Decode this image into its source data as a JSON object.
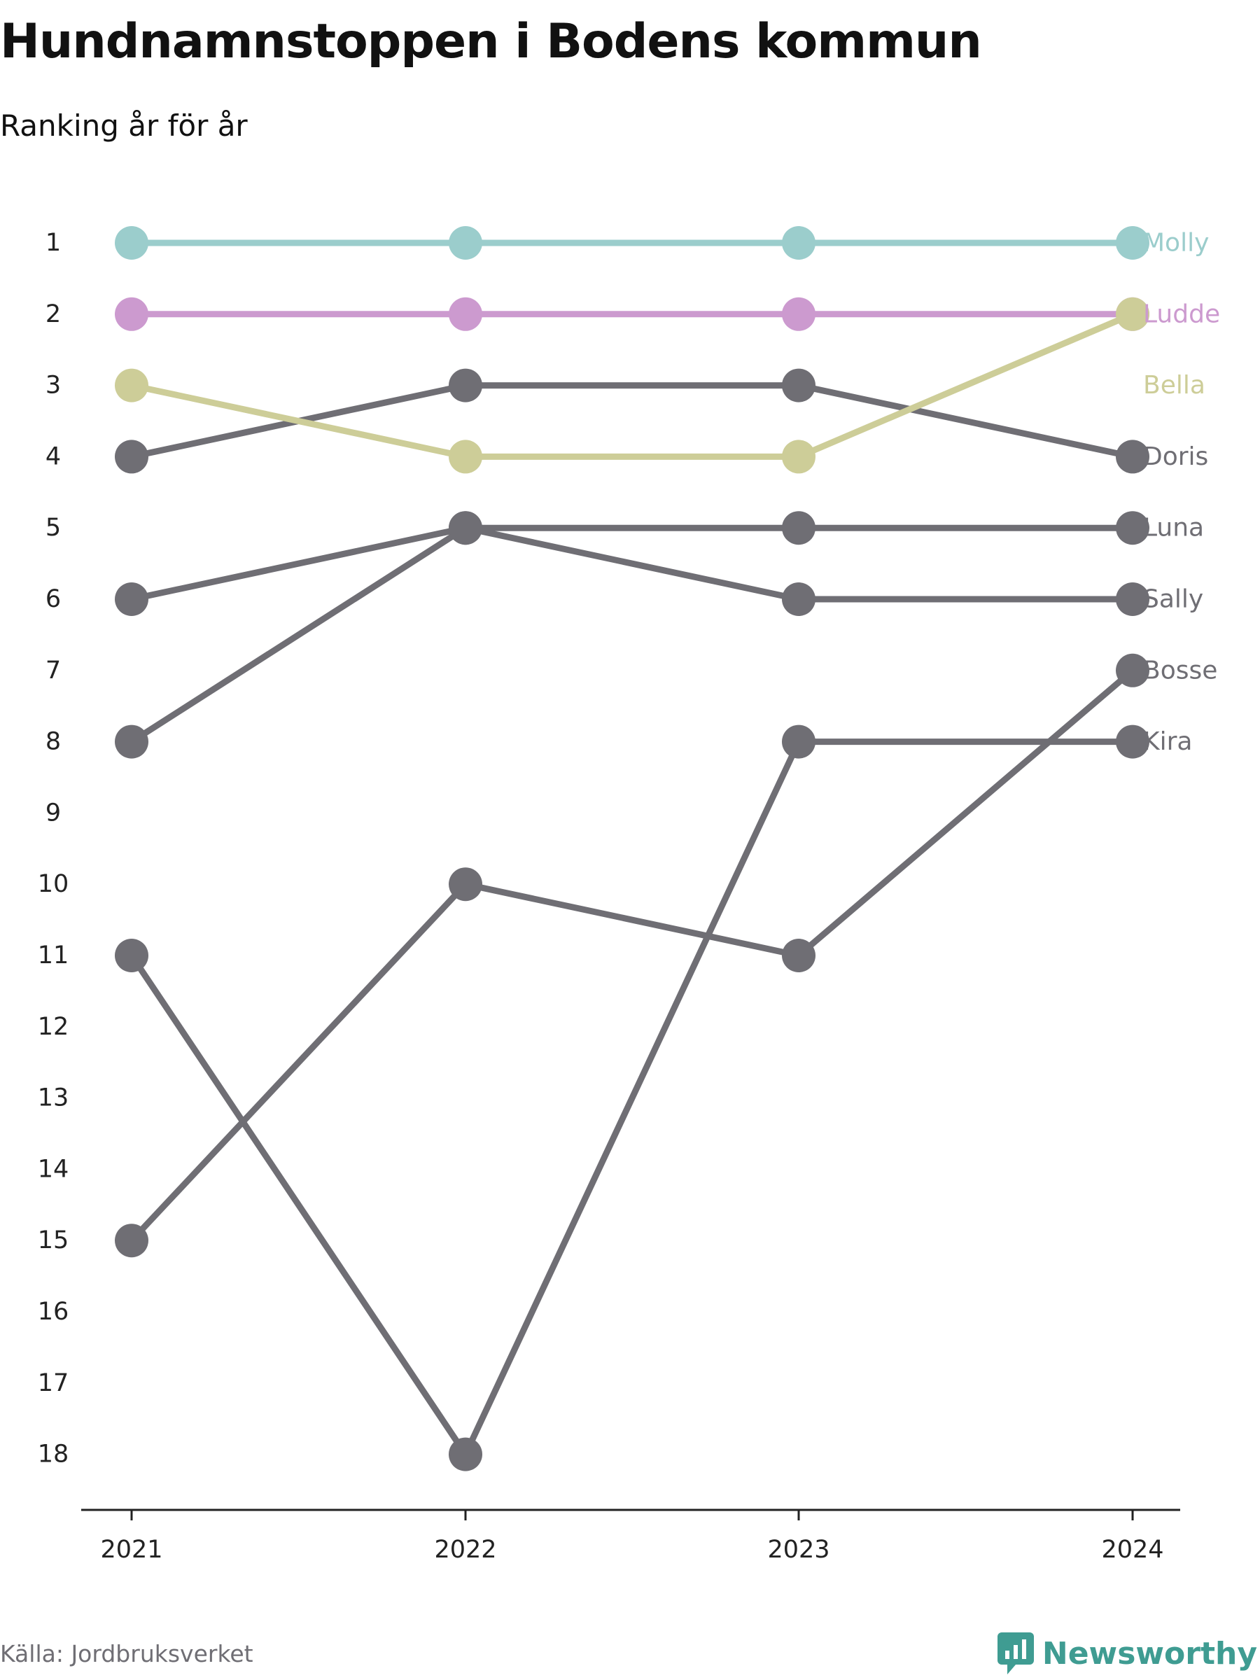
{
  "header": {
    "title": "Hundnamnstoppen i Bodens kommun",
    "subtitle": "Ranking år för år"
  },
  "footer": {
    "source": "Källa: Jordbruksverket",
    "brand": "Newsworthy"
  },
  "colors": {
    "highlight_molly": "#9bcdcc",
    "highlight_ludde": "#cc9acf",
    "highlight_bella": "#cdcd98",
    "other": "#6f6e74",
    "axis": "#222222",
    "brand": "#3f9c92"
  },
  "chart_data": {
    "type": "line",
    "x": [
      "2021",
      "2022",
      "2023",
      "2024"
    ],
    "ylim": [
      1,
      18
    ],
    "y_reversed": true,
    "yticks": [
      "1",
      "2",
      "3",
      "4",
      "5",
      "6",
      "7",
      "8",
      "9",
      "10",
      "11",
      "12",
      "13",
      "14",
      "15",
      "16",
      "17",
      "18"
    ],
    "grid": false,
    "legend": "none",
    "series": [
      {
        "name": "Molly",
        "values": [
          1,
          1,
          1,
          1
        ],
        "color": "#9bcdcc"
      },
      {
        "name": "Ludde",
        "values": [
          2,
          2,
          2,
          2
        ],
        "color": "#cc9acf"
      },
      {
        "name": "Bella",
        "values": [
          3,
          4,
          4,
          2
        ],
        "color": "#cdcd98"
      },
      {
        "name": "Doris",
        "values": [
          4,
          3,
          3,
          4
        ],
        "color": "#6f6e74"
      },
      {
        "name": "Luna",
        "values": [
          6,
          5,
          5,
          5
        ],
        "color": "#6f6e74"
      },
      {
        "name": "Sally",
        "values": [
          8,
          5,
          6,
          6
        ],
        "color": "#6f6e74"
      },
      {
        "name": "Bosse",
        "values": [
          15,
          10,
          11,
          7
        ],
        "color": "#6f6e74"
      },
      {
        "name": "Kira",
        "values": [
          11,
          18,
          8,
          8
        ],
        "color": "#6f6e74"
      }
    ]
  }
}
